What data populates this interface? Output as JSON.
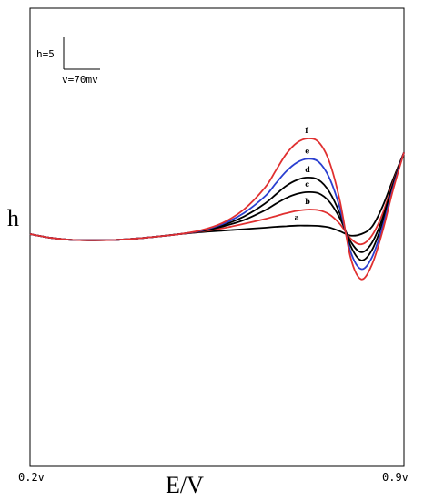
{
  "chart_data": {
    "type": "line",
    "title": "",
    "xlabel": "E/V",
    "ylabel": "h",
    "xlim": [
      0.2,
      0.9
    ],
    "ylim": [
      -3.0,
      5.0
    ],
    "x_tick_labels": [
      "0.2v",
      "0.9v"
    ],
    "scale_bar": {
      "height_label": "h=5",
      "voltage_label": "v=70mv"
    },
    "grid": false,
    "legend": "none",
    "x": [
      0.2,
      0.24,
      0.28,
      0.32,
      0.36,
      0.4,
      0.44,
      0.48,
      0.52,
      0.56,
      0.6,
      0.64,
      0.66,
      0.68,
      0.7,
      0.72,
      0.74,
      0.76,
      0.78,
      0.8,
      0.82,
      0.84,
      0.86,
      0.88,
      0.9
    ],
    "series": [
      {
        "name": "a",
        "color": "#000000",
        "values": [
          0.0,
          -0.13,
          -0.2,
          -0.21,
          -0.2,
          -0.15,
          -0.08,
          0.0,
          0.07,
          0.12,
          0.17,
          0.22,
          0.25,
          0.27,
          0.29,
          0.29,
          0.28,
          0.23,
          0.1,
          -0.05,
          0.0,
          0.25,
          0.95,
          1.9,
          2.8
        ]
      },
      {
        "name": "b",
        "color": "#e03030",
        "values": [
          0.0,
          -0.13,
          -0.2,
          -0.21,
          -0.2,
          -0.15,
          -0.08,
          0.0,
          0.09,
          0.2,
          0.35,
          0.52,
          0.62,
          0.72,
          0.8,
          0.84,
          0.82,
          0.68,
          0.35,
          -0.15,
          -0.35,
          -0.05,
          0.7,
          1.8,
          2.8
        ]
      },
      {
        "name": "c",
        "color": "#000000",
        "values": [
          0.0,
          -0.13,
          -0.2,
          -0.21,
          -0.2,
          -0.15,
          -0.08,
          0.0,
          0.1,
          0.26,
          0.48,
          0.82,
          1.04,
          1.24,
          1.38,
          1.44,
          1.4,
          1.12,
          0.55,
          -0.25,
          -0.62,
          -0.3,
          0.55,
          1.75,
          2.8
        ]
      },
      {
        "name": "d",
        "color": "#000000",
        "values": [
          0.0,
          -0.13,
          -0.2,
          -0.21,
          -0.2,
          -0.15,
          -0.08,
          0.0,
          0.11,
          0.3,
          0.6,
          1.05,
          1.36,
          1.66,
          1.86,
          1.94,
          1.86,
          1.46,
          0.7,
          -0.4,
          -0.9,
          -0.55,
          0.4,
          1.7,
          2.8
        ]
      },
      {
        "name": "e",
        "color": "#2a3fd0",
        "values": [
          0.0,
          -0.13,
          -0.2,
          -0.21,
          -0.2,
          -0.15,
          -0.08,
          0.0,
          0.12,
          0.34,
          0.72,
          1.3,
          1.74,
          2.16,
          2.46,
          2.58,
          2.48,
          1.94,
          0.9,
          -0.6,
          -1.2,
          -0.8,
          0.25,
          1.62,
          2.8
        ]
      },
      {
        "name": "f",
        "color": "#e03030",
        "values": [
          0.0,
          -0.13,
          -0.2,
          -0.21,
          -0.2,
          -0.15,
          -0.08,
          0.0,
          0.13,
          0.38,
          0.84,
          1.6,
          2.18,
          2.76,
          3.14,
          3.28,
          3.16,
          2.5,
          1.15,
          -0.8,
          -1.55,
          -1.05,
          0.1,
          1.55,
          2.8
        ]
      }
    ]
  }
}
